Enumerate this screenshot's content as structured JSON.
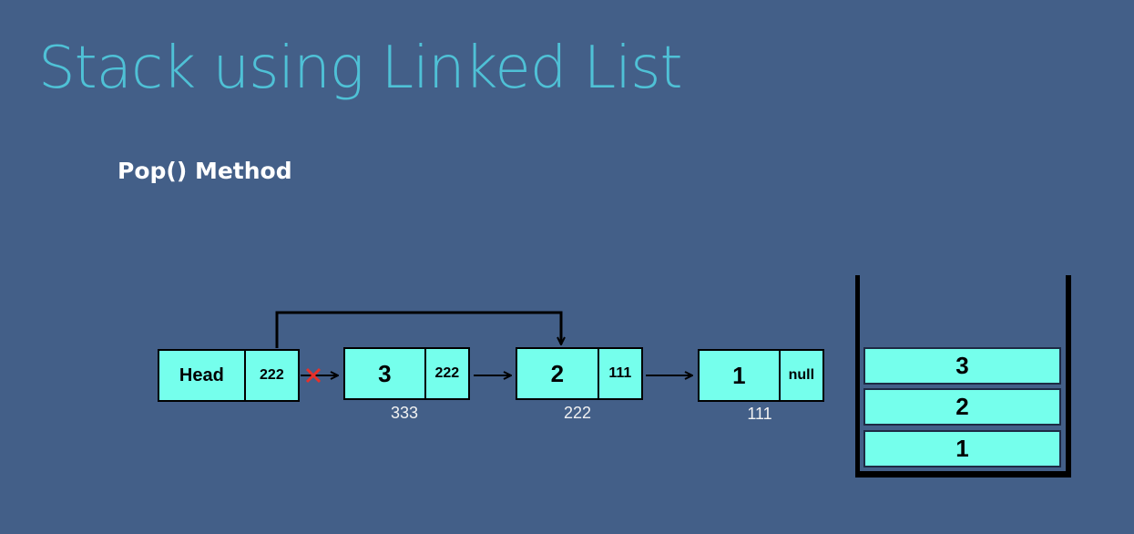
{
  "slide": {
    "title": "Stack using Linked List",
    "subtitle": "Pop() Method"
  },
  "linked_list": {
    "head": {
      "label": "Head",
      "next": "222"
    },
    "nodes": [
      {
        "value": "3",
        "next": "222",
        "address": "333"
      },
      {
        "value": "2",
        "next": "111",
        "address": "222"
      },
      {
        "value": "1",
        "next": "null",
        "address": "111"
      }
    ]
  },
  "stack": {
    "items": [
      "3",
      "2",
      "1"
    ]
  },
  "colors": {
    "background": "#435F88",
    "title": "#4FC1D6",
    "node_fill": "#75FFEC",
    "cross_mark": "#E8302A"
  }
}
